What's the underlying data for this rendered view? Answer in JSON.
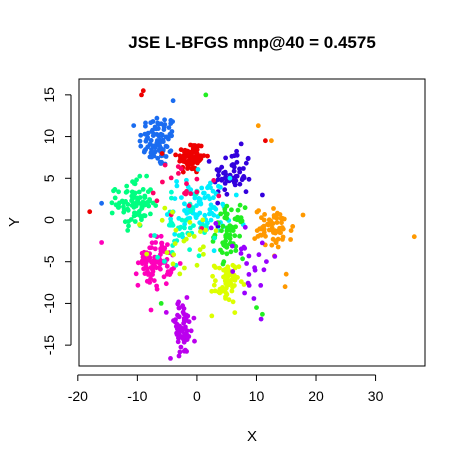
{
  "chart_data": {
    "type": "scatter",
    "title": "JSE L-BFGS mnp@40 = 0.4575",
    "xlabel": "X",
    "ylabel": "Y",
    "xlim": [
      -19.8,
      38.3
    ],
    "ylim": [
      -17.5,
      16.9
    ],
    "x_ticks": [
      -20,
      -10,
      0,
      10,
      20,
      30
    ],
    "y_ticks": [
      -15,
      -10,
      -5,
      0,
      5,
      10,
      15
    ],
    "grid": false,
    "legend": "none",
    "point_style": "filled circle",
    "clusters": [
      {
        "color": "#1a6cf0",
        "center": [
          -6.5,
          9.5
        ],
        "spread": [
          1.6,
          1.6
        ],
        "n": 90
      },
      {
        "color": "#ee0000",
        "center": [
          -1,
          7.5
        ],
        "spread": [
          1.2,
          1.0
        ],
        "n": 80
      },
      {
        "color": "#3300dd",
        "center": [
          6,
          5.5
        ],
        "spread": [
          1.6,
          1.5
        ],
        "n": 60
      },
      {
        "color": "#00ff80",
        "center": [
          -10.5,
          2
        ],
        "spread": [
          1.5,
          1.4
        ],
        "n": 85
      },
      {
        "color": "#00eeff",
        "center": [
          0.5,
          1.5
        ],
        "spread": [
          2.6,
          1.8
        ],
        "n": 95
      },
      {
        "color": "#22ee22",
        "center": [
          5.5,
          -1.5
        ],
        "spread": [
          1.2,
          1.5
        ],
        "n": 70
      },
      {
        "color": "#ff9900",
        "center": [
          13,
          -1
        ],
        "spread": [
          1.6,
          1.2
        ],
        "n": 65
      },
      {
        "color": "#ff00bb",
        "center": [
          -7,
          -5
        ],
        "spread": [
          1.4,
          1.5
        ],
        "n": 85
      },
      {
        "color": "#ddff00",
        "center": [
          5,
          -7.5
        ],
        "spread": [
          1.0,
          1.2
        ],
        "n": 60
      },
      {
        "color": "#bb00ee",
        "center": [
          -2.5,
          -13
        ],
        "spread": [
          1.1,
          1.7
        ],
        "n": 60
      },
      {
        "color": "#00ffcc",
        "center": [
          -2,
          -1
        ],
        "spread": [
          2.2,
          1.8
        ],
        "n": 40
      },
      {
        "color": "#ff0066",
        "center": [
          -3,
          3
        ],
        "spread": [
          3.0,
          2.5
        ],
        "n": 20
      },
      {
        "color": "#ccff00",
        "center": [
          -2,
          -3
        ],
        "spread": [
          3.0,
          2.5
        ],
        "n": 25
      },
      {
        "color": "#9900ff",
        "center": [
          8,
          -4
        ],
        "spread": [
          3.0,
          3.0
        ],
        "n": 25
      }
    ],
    "outliers": [
      {
        "x": 36.5,
        "y": -2,
        "color": "#ff9900"
      },
      {
        "x": -18,
        "y": 1,
        "color": "#ee0000"
      },
      {
        "x": -16,
        "y": -2.7,
        "color": "#ff00bb"
      },
      {
        "x": -9,
        "y": 15.5,
        "color": "#ee0000"
      },
      {
        "x": -9.3,
        "y": 15,
        "color": "#ee0000"
      },
      {
        "x": 1.5,
        "y": 15,
        "color": "#22ee22"
      },
      {
        "x": -4,
        "y": 14.3,
        "color": "#1a6cf0"
      },
      {
        "x": 11.5,
        "y": 9.5,
        "color": "#ee0000"
      },
      {
        "x": 12.5,
        "y": 9.5,
        "color": "#ff9900"
      },
      {
        "x": 10.3,
        "y": 11.3,
        "color": "#ff9900"
      },
      {
        "x": 15,
        "y": -6.5,
        "color": "#ff9900"
      },
      {
        "x": 14.8,
        "y": -8,
        "color": "#ff9900"
      },
      {
        "x": 10,
        "y": -10.5,
        "color": "#22ee22"
      },
      {
        "x": 11,
        "y": -11.3,
        "color": "#22ee22"
      },
      {
        "x": 2.5,
        "y": -11.5,
        "color": "#ddff00"
      },
      {
        "x": -6,
        "y": -10,
        "color": "#22ee22"
      },
      {
        "x": -14,
        "y": 3.5,
        "color": "#00ff80"
      },
      {
        "x": -16,
        "y": 2,
        "color": "#1a6cf0"
      },
      {
        "x": 11,
        "y": 3,
        "color": "#3300dd"
      },
      {
        "x": -3,
        "y": -16.3,
        "color": "#bb00ee"
      }
    ]
  }
}
